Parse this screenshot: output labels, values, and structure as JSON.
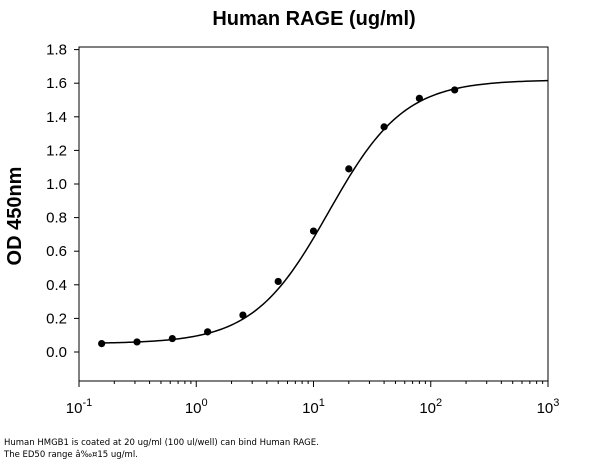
{
  "chart_data": {
    "type": "scatter",
    "title": "Human RAGE (ug/ml)",
    "xlabel": "",
    "ylabel": "OD 450nm",
    "x_scale": "log",
    "xlim": [
      0.1,
      1000
    ],
    "ylim": [
      0,
      1.8
    ],
    "x_ticks": [
      {
        "value": 0.1,
        "base": "10",
        "exp": "-1"
      },
      {
        "value": 1,
        "base": "10",
        "exp": "0"
      },
      {
        "value": 10,
        "base": "10",
        "exp": "1"
      },
      {
        "value": 100,
        "base": "10",
        "exp": "2"
      },
      {
        "value": 1000,
        "base": "10",
        "exp": "3"
      }
    ],
    "y_ticks": [
      "0.0",
      "0.2",
      "0.4",
      "0.6",
      "0.8",
      "1.0",
      "1.2",
      "1.4",
      "1.6",
      "1.8"
    ],
    "grid": false,
    "legend": "none",
    "series": [
      {
        "x": [
          0.156,
          0.3125,
          0.625,
          1.25,
          2.5,
          5,
          10,
          20,
          40,
          80,
          160
        ],
        "y": [
          0.05,
          0.06,
          0.08,
          0.12,
          0.22,
          0.42,
          0.72,
          1.09,
          1.34,
          1.51,
          1.56
        ],
        "color": "#000000",
        "fit": {
          "model": "4PL",
          "bottom": 0.05,
          "top": 1.62,
          "ec50": 13.5,
          "hill": 1.35
        }
      }
    ]
  },
  "caption": {
    "line1": "Human HMGB1 is coated at 20 ug/ml (100 ul/well) can bind Human RAGE.",
    "line2": "The ED50 range â‰¤15 ug/ml."
  }
}
